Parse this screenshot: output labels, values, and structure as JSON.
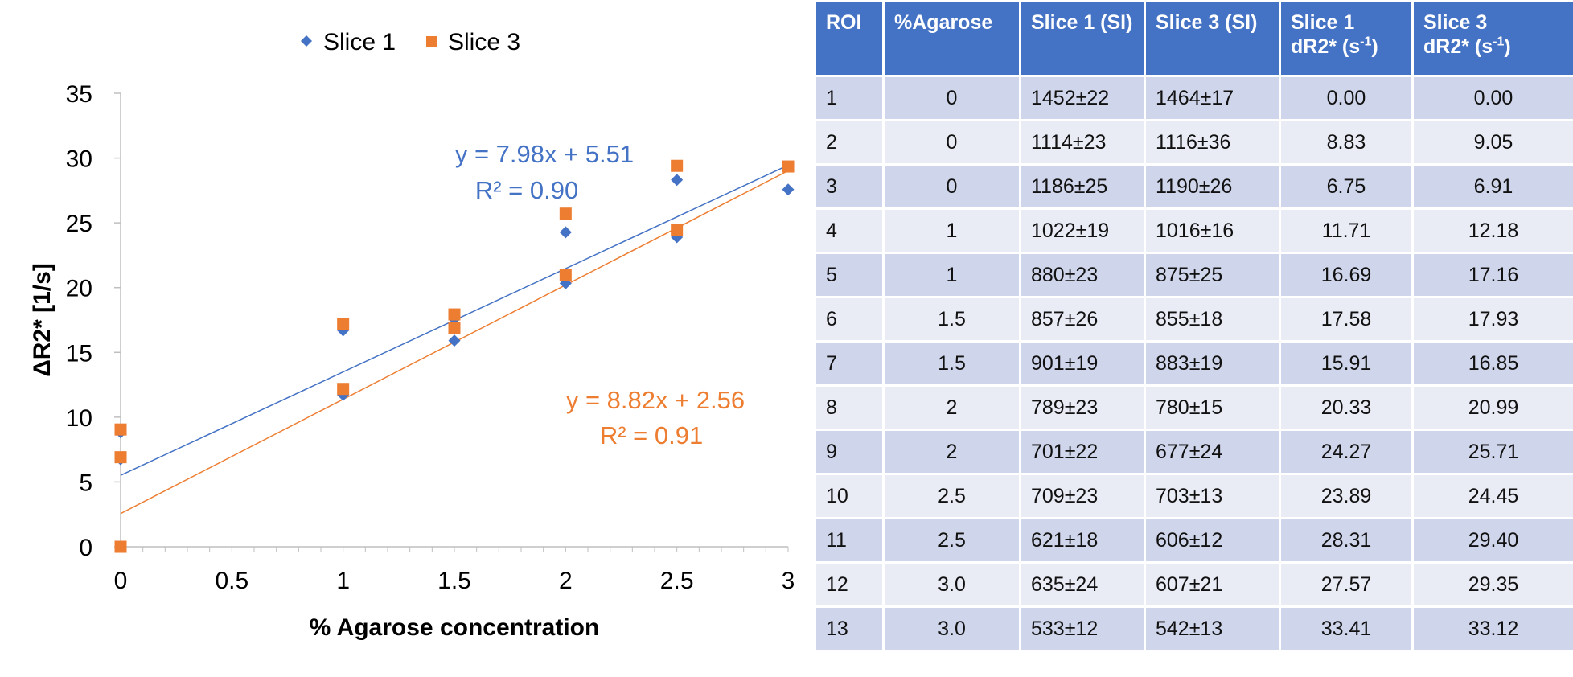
{
  "chart_data": {
    "type": "scatter",
    "xlabel": "% Agarose concentration",
    "ylabel": "ΔR2* [1/s]",
    "xlim": [
      0,
      3
    ],
    "ylim": [
      0,
      35
    ],
    "xticks": [
      "0",
      "0.5",
      "1",
      "1.5",
      "2",
      "2.5",
      "3"
    ],
    "yticks": [
      "0",
      "5",
      "10",
      "15",
      "20",
      "25",
      "30",
      "35"
    ],
    "legend_position": "top",
    "series": [
      {
        "name": "Slice 1",
        "marker": "diamond",
        "color": "#4472c4",
        "x": [
          0,
          0,
          0,
          1,
          1,
          1.5,
          1.5,
          2,
          2,
          2.5,
          2.5,
          3
        ],
        "y": [
          0.0,
          8.83,
          6.75,
          11.71,
          16.69,
          17.58,
          15.91,
          20.33,
          24.27,
          23.89,
          28.31,
          27.57
        ],
        "trendline": {
          "slope": 7.98,
          "intercept": 5.51
        },
        "equation": "y = 7.98x + 5.51",
        "r2": "R² = 0.90"
      },
      {
        "name": "Slice 3",
        "marker": "square",
        "color": "#ed7d31",
        "x": [
          0,
          0,
          0,
          1,
          1,
          1.5,
          1.5,
          2,
          2,
          2.5,
          2.5,
          3
        ],
        "y": [
          0.0,
          9.05,
          6.91,
          12.18,
          17.16,
          17.93,
          16.85,
          20.99,
          25.71,
          24.45,
          29.4,
          29.35
        ],
        "trendline": {
          "slope": 8.82,
          "intercept": 2.56
        },
        "equation": "y = 8.82x + 2.56",
        "r2": "R² = 0.91"
      }
    ]
  },
  "table": {
    "headers": [
      "ROI",
      "%Agarose",
      "Slice 1 (SI)",
      "Slice 3 (SI)",
      "Slice 1 dR2* (s-1)",
      "Slice 3 dR2* (s-1)"
    ],
    "header_parts": {
      "slice1_dr2_line1": "Slice 1",
      "slice1_dr2_line2": "dR2* (s",
      "slice3_dr2_line1": "Slice 3",
      "slice3_dr2_line2": "dR2* (s",
      "unit_exp": "-1",
      "close": ")"
    },
    "rows": [
      [
        "1",
        "0",
        "1452±22",
        "1464±17",
        "0.00",
        "0.00"
      ],
      [
        "2",
        "0",
        "1114±23",
        "1116±36",
        "8.83",
        "9.05"
      ],
      [
        "3",
        "0",
        "1186±25",
        "1190±26",
        "6.75",
        "6.91"
      ],
      [
        "4",
        "1",
        "1022±19",
        "1016±16",
        "11.71",
        "12.18"
      ],
      [
        "5",
        "1",
        "880±23",
        "875±25",
        "16.69",
        "17.16"
      ],
      [
        "6",
        "1.5",
        "857±26",
        "855±18",
        "17.58",
        "17.93"
      ],
      [
        "7",
        "1.5",
        "901±19",
        "883±19",
        "15.91",
        "16.85"
      ],
      [
        "8",
        "2",
        "789±23",
        "780±15",
        "20.33",
        "20.99"
      ],
      [
        "9",
        "2",
        "701±22",
        "677±24",
        "24.27",
        "25.71"
      ],
      [
        "10",
        "2.5",
        "709±23",
        "703±13",
        "23.89",
        "24.45"
      ],
      [
        "11",
        "2.5",
        "621±18",
        "606±12",
        "28.31",
        "29.40"
      ],
      [
        "12",
        "3.0",
        "635±24",
        "607±21",
        "27.57",
        "29.35"
      ],
      [
        "13",
        "3.0",
        "533±12",
        "542±13",
        "33.41",
        "33.12"
      ]
    ]
  }
}
